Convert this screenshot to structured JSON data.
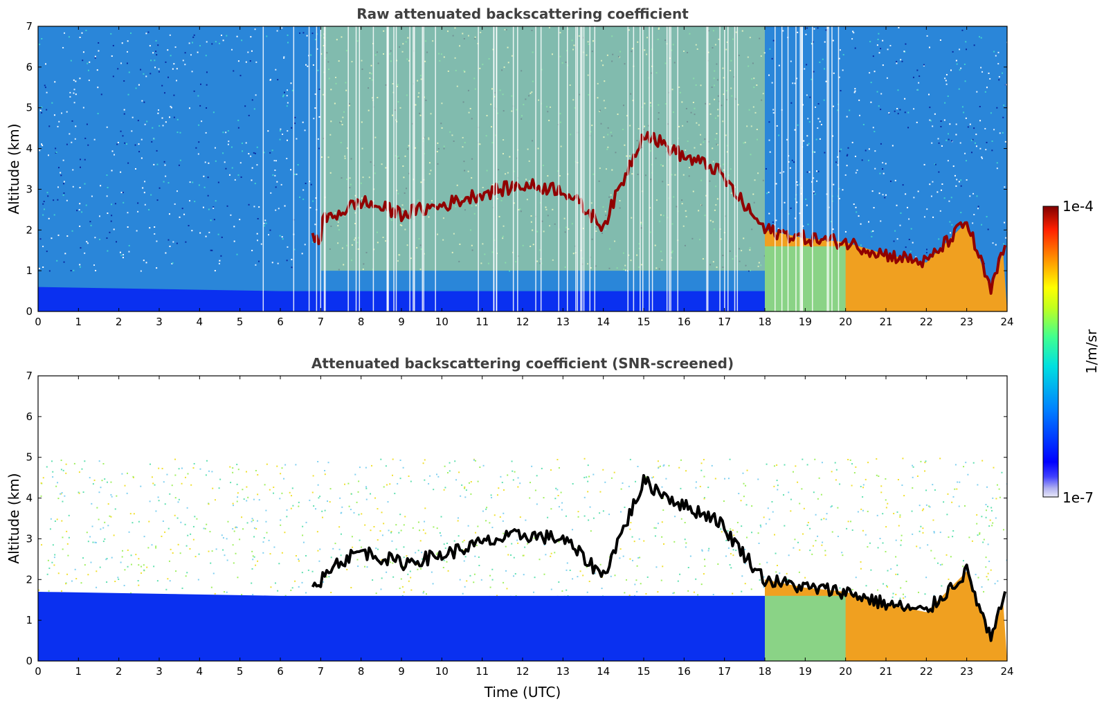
{
  "figure": {
    "xlabel": "Time (UTC)",
    "colorbar": {
      "label": "1/m/sr",
      "max_label": "1e-4",
      "min_label": "1e-7",
      "scale": "log",
      "range": [
        1e-07,
        0.0001
      ],
      "colormap": "jet-like",
      "low_colors": [
        "#e8e8f8",
        "#c8c8f0",
        "#a0a0f0",
        "#7878f0"
      ]
    }
  },
  "chart_data": [
    {
      "type": "heatmap",
      "title": "Raw attenuated backscattering coefficient",
      "xlabel": "",
      "ylabel": "Altitude (km)",
      "xlim": [
        0,
        24
      ],
      "ylim": [
        0,
        7
      ],
      "xticks": [
        0,
        1,
        2,
        3,
        4,
        5,
        6,
        7,
        8,
        9,
        10,
        11,
        12,
        13,
        14,
        15,
        16,
        17,
        18,
        19,
        20,
        21,
        22,
        23,
        24
      ],
      "yticks": [
        0,
        1,
        2,
        3,
        4,
        5,
        6,
        7
      ],
      "features": {
        "boundary_layer_top_km": [
          [
            0,
            0.6
          ],
          [
            6,
            0.5
          ],
          [
            18,
            0.5
          ]
        ],
        "cloud_layers_km": [
          [
            7,
            2.2
          ],
          [
            8,
            2.7
          ],
          [
            9,
            2.4
          ],
          [
            10,
            2.6
          ],
          [
            11,
            2.9
          ],
          [
            12,
            3.1
          ],
          [
            13,
            3.0
          ],
          [
            14,
            2.1
          ],
          [
            15,
            4.4
          ],
          [
            16,
            3.8
          ],
          [
            16.8,
            3.5
          ],
          [
            17.5,
            2.6
          ],
          [
            18,
            2.0
          ],
          [
            19,
            1.8
          ],
          [
            20,
            1.7
          ],
          [
            21,
            1.4
          ],
          [
            22,
            1.2
          ],
          [
            23,
            2.2
          ],
          [
            23.6,
            0.5
          ],
          [
            24,
            1.8
          ]
        ]
      }
    },
    {
      "type": "heatmap",
      "title": "Attenuated backscattering coefficient (SNR-screened)",
      "xlabel": "Time (UTC)",
      "ylabel": "Altitude (km)",
      "xlim": [
        0,
        24
      ],
      "ylim": [
        0,
        7
      ],
      "xticks": [
        0,
        1,
        2,
        3,
        4,
        5,
        6,
        7,
        8,
        9,
        10,
        11,
        12,
        13,
        14,
        15,
        16,
        17,
        18,
        19,
        20,
        21,
        22,
        23,
        24
      ],
      "yticks": [
        0,
        1,
        2,
        3,
        4,
        5,
        6,
        7
      ],
      "features": {
        "boundary_layer_top_km": [
          [
            0,
            1.7
          ],
          [
            6,
            1.6
          ],
          [
            18,
            1.6
          ]
        ],
        "cloud_layers_km": [
          [
            7,
            2.2
          ],
          [
            8,
            2.7
          ],
          [
            9,
            2.4
          ],
          [
            10,
            2.6
          ],
          [
            11,
            2.9
          ],
          [
            12,
            3.1
          ],
          [
            13,
            3.0
          ],
          [
            14,
            2.1
          ],
          [
            15,
            4.4
          ],
          [
            16,
            3.8
          ],
          [
            16.8,
            3.5
          ],
          [
            17.5,
            2.6
          ],
          [
            18,
            2.0
          ],
          [
            19,
            1.8
          ],
          [
            20,
            1.7
          ],
          [
            21,
            1.4
          ],
          [
            22,
            1.2
          ],
          [
            23,
            2.2
          ],
          [
            23.6,
            0.5
          ],
          [
            24,
            1.8
          ]
        ]
      }
    }
  ]
}
